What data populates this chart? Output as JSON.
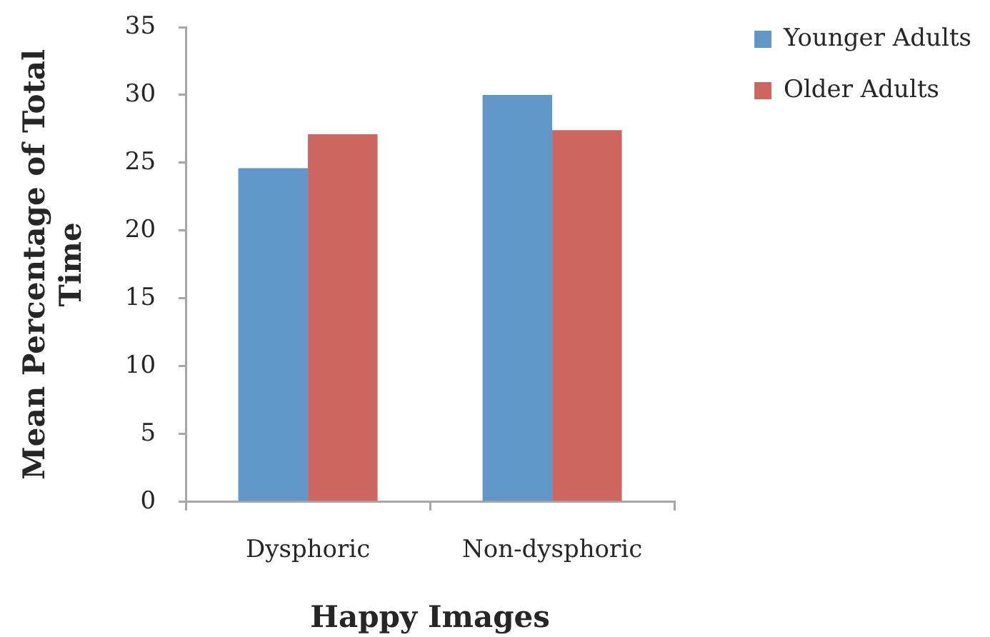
{
  "chart_data": {
    "type": "bar",
    "xlabel": "Happy Images",
    "ylabel": "Mean Percentage of Total Time",
    "categories": [
      "Dysphoric",
      "Non-dysphoric"
    ],
    "series": [
      {
        "name": "Younger Adults",
        "color": "#6196c9",
        "values": [
          24.6,
          30.0
        ]
      },
      {
        "name": "Older Adults",
        "color": "#cd6660",
        "values": [
          27.1,
          27.4
        ]
      }
    ],
    "ylim": [
      0,
      35
    ],
    "yticks": [
      0,
      5,
      10,
      15,
      20,
      25,
      30,
      35
    ],
    "legend": "top right",
    "grid": false
  }
}
